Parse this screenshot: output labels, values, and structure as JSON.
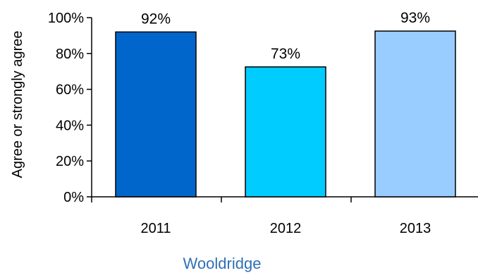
{
  "chart_data": {
    "type": "bar",
    "title": "",
    "ylabel": "Agree or strongly agree",
    "xlabel": "Wooldridge",
    "xlabel_color": "#2F6FB5",
    "categories": [
      "2011",
      "2012",
      "2013"
    ],
    "values": [
      92,
      72.5,
      92.5
    ],
    "value_labels": [
      "92%",
      "73%",
      "93%"
    ],
    "bar_colors": [
      "#0066CC",
      "#00CCFF",
      "#99CCFF"
    ],
    "ylim": [
      0,
      100
    ],
    "yticks": [
      0,
      20,
      40,
      60,
      80,
      100
    ],
    "ytick_labels": [
      "0%",
      "20%",
      "40%",
      "60%",
      "80%",
      "100%"
    ],
    "grid": false,
    "legend": "none"
  }
}
